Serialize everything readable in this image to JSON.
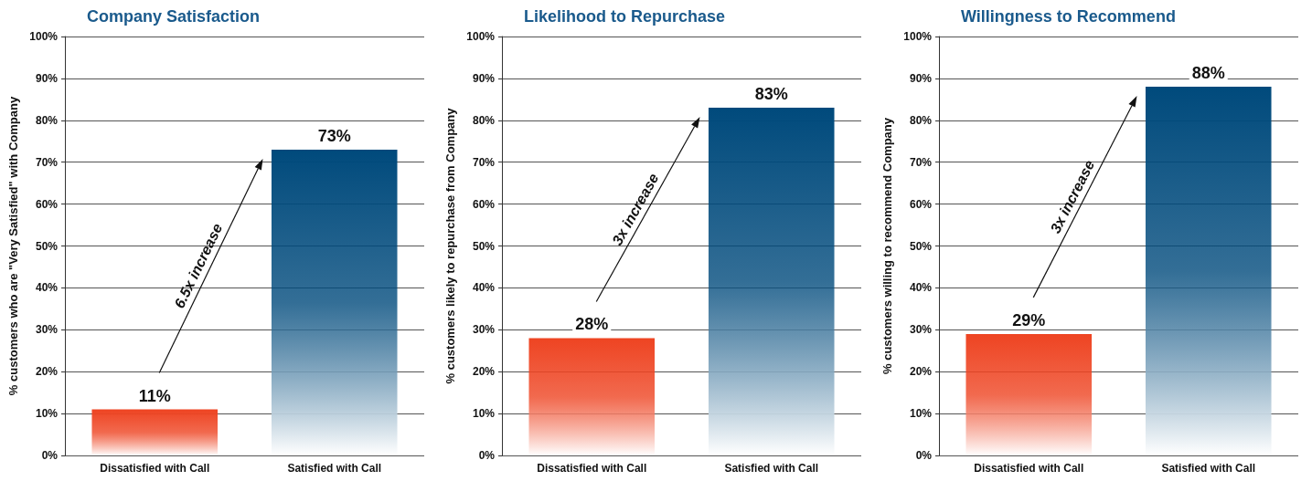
{
  "chart_data": [
    {
      "type": "bar",
      "title": "Company Satisfaction",
      "ylabel": "% customers who are \"Very Satisfied\" with Company",
      "categories": [
        "Dissatisfied with Call",
        "Satisfied with Call"
      ],
      "values": [
        11,
        73
      ],
      "colors": [
        "#ee4422",
        "#004a7c"
      ],
      "value_labels": [
        "11%",
        "73%"
      ],
      "annotations": [
        "6.5x increase"
      ],
      "ylim": [
        0,
        100
      ],
      "yticks": [
        {
          "value": 0,
          "label": "0%"
        },
        {
          "value": 10,
          "label": "10%"
        },
        {
          "value": 20,
          "label": "20%"
        },
        {
          "value": 30,
          "label": "30%"
        },
        {
          "value": 40,
          "label": "40%"
        },
        {
          "value": 50,
          "label": "50%"
        },
        {
          "value": 60,
          "label": "60%"
        },
        {
          "value": 70,
          "label": "70%"
        },
        {
          "value": 80,
          "label": "80%"
        },
        {
          "value": 90,
          "label": "90%"
        },
        {
          "value": 100,
          "label": "100%"
        }
      ],
      "grid": "y"
    },
    {
      "type": "bar",
      "title": "Likelihood to Repurchase",
      "ylabel": "% customers likely to repurchase from Company",
      "categories": [
        "Dissatisfied with Call",
        "Satisfied with Call"
      ],
      "values": [
        28,
        83
      ],
      "colors": [
        "#ee4422",
        "#004a7c"
      ],
      "value_labels": [
        "28%",
        "83%"
      ],
      "annotations": [
        "3x increase"
      ],
      "ylim": [
        0,
        100
      ],
      "yticks": [
        {
          "value": 0,
          "label": "0%"
        },
        {
          "value": 10,
          "label": "10%"
        },
        {
          "value": 20,
          "label": "20%"
        },
        {
          "value": 30,
          "label": "30%"
        },
        {
          "value": 40,
          "label": "40%"
        },
        {
          "value": 50,
          "label": "50%"
        },
        {
          "value": 60,
          "label": "60%"
        },
        {
          "value": 70,
          "label": "70%"
        },
        {
          "value": 80,
          "label": "80%"
        },
        {
          "value": 90,
          "label": "90%"
        },
        {
          "value": 100,
          "label": "100%"
        }
      ],
      "grid": "y"
    },
    {
      "type": "bar",
      "title": "Willingness to Recommend",
      "ylabel": "% customers willing to recommend Company",
      "categories": [
        "Dissatisfied with Call",
        "Satisfied with Call"
      ],
      "values": [
        29,
        88
      ],
      "colors": [
        "#ee4422",
        "#004a7c"
      ],
      "value_labels": [
        "29%",
        "88%"
      ],
      "annotations": [
        "3x increase"
      ],
      "ylim": [
        0,
        100
      ],
      "yticks": [
        {
          "value": 0,
          "label": "0%"
        },
        {
          "value": 10,
          "label": "10%"
        },
        {
          "value": 20,
          "label": "20%"
        },
        {
          "value": 30,
          "label": "30%"
        },
        {
          "value": 40,
          "label": "40%"
        },
        {
          "value": 50,
          "label": "50%"
        },
        {
          "value": 60,
          "label": "60%"
        },
        {
          "value": 70,
          "label": "70%"
        },
        {
          "value": 80,
          "label": "80%"
        },
        {
          "value": 90,
          "label": "90%"
        },
        {
          "value": 100,
          "label": "100%"
        }
      ],
      "grid": "y"
    }
  ]
}
